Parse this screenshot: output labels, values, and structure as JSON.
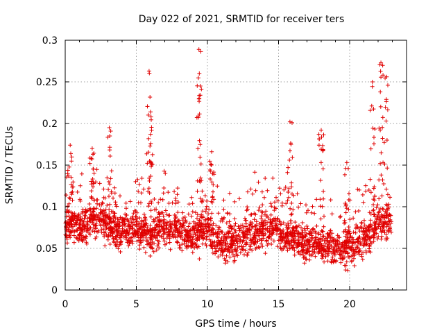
{
  "chart_data": {
    "type": "scatter",
    "title": "Day 022 of 2021, SRMTID for receiver ters",
    "xlabel": "GPS time / hours",
    "ylabel": "SRMTID / TECUs",
    "xlim": [
      0,
      24
    ],
    "ylim": [
      0,
      0.3
    ],
    "x_ticks": [
      "0",
      "5",
      "10",
      "15",
      "20"
    ],
    "x_tick_values": [
      0,
      5,
      10,
      15,
      20
    ],
    "y_ticks": [
      "0",
      "0.05",
      "0.1",
      "0.15",
      "0.2",
      "0.25",
      "0.3"
    ],
    "y_tick_values": [
      0,
      0.05,
      0.1,
      0.15,
      0.2,
      0.25,
      0.3
    ],
    "grid": true,
    "marker": "plus",
    "marker_color": "#e00000",
    "approximate_envelope_hours": [
      0,
      23
    ],
    "typical_range": [
      0.02,
      0.15
    ],
    "peaks": [
      {
        "x": 0.35,
        "y": 0.174
      },
      {
        "x": 1.9,
        "y": 0.17
      },
      {
        "x": 3.1,
        "y": 0.195
      },
      {
        "x": 5.9,
        "y": 0.263
      },
      {
        "x": 6.0,
        "y": 0.214
      },
      {
        "x": 9.4,
        "y": 0.289
      },
      {
        "x": 9.5,
        "y": 0.245
      },
      {
        "x": 10.3,
        "y": 0.166
      },
      {
        "x": 15.8,
        "y": 0.202
      },
      {
        "x": 18.0,
        "y": 0.192
      },
      {
        "x": 19.8,
        "y": 0.153
      },
      {
        "x": 21.6,
        "y": 0.25
      },
      {
        "x": 22.2,
        "y": 0.273
      },
      {
        "x": 22.6,
        "y": 0.256
      }
    ]
  }
}
